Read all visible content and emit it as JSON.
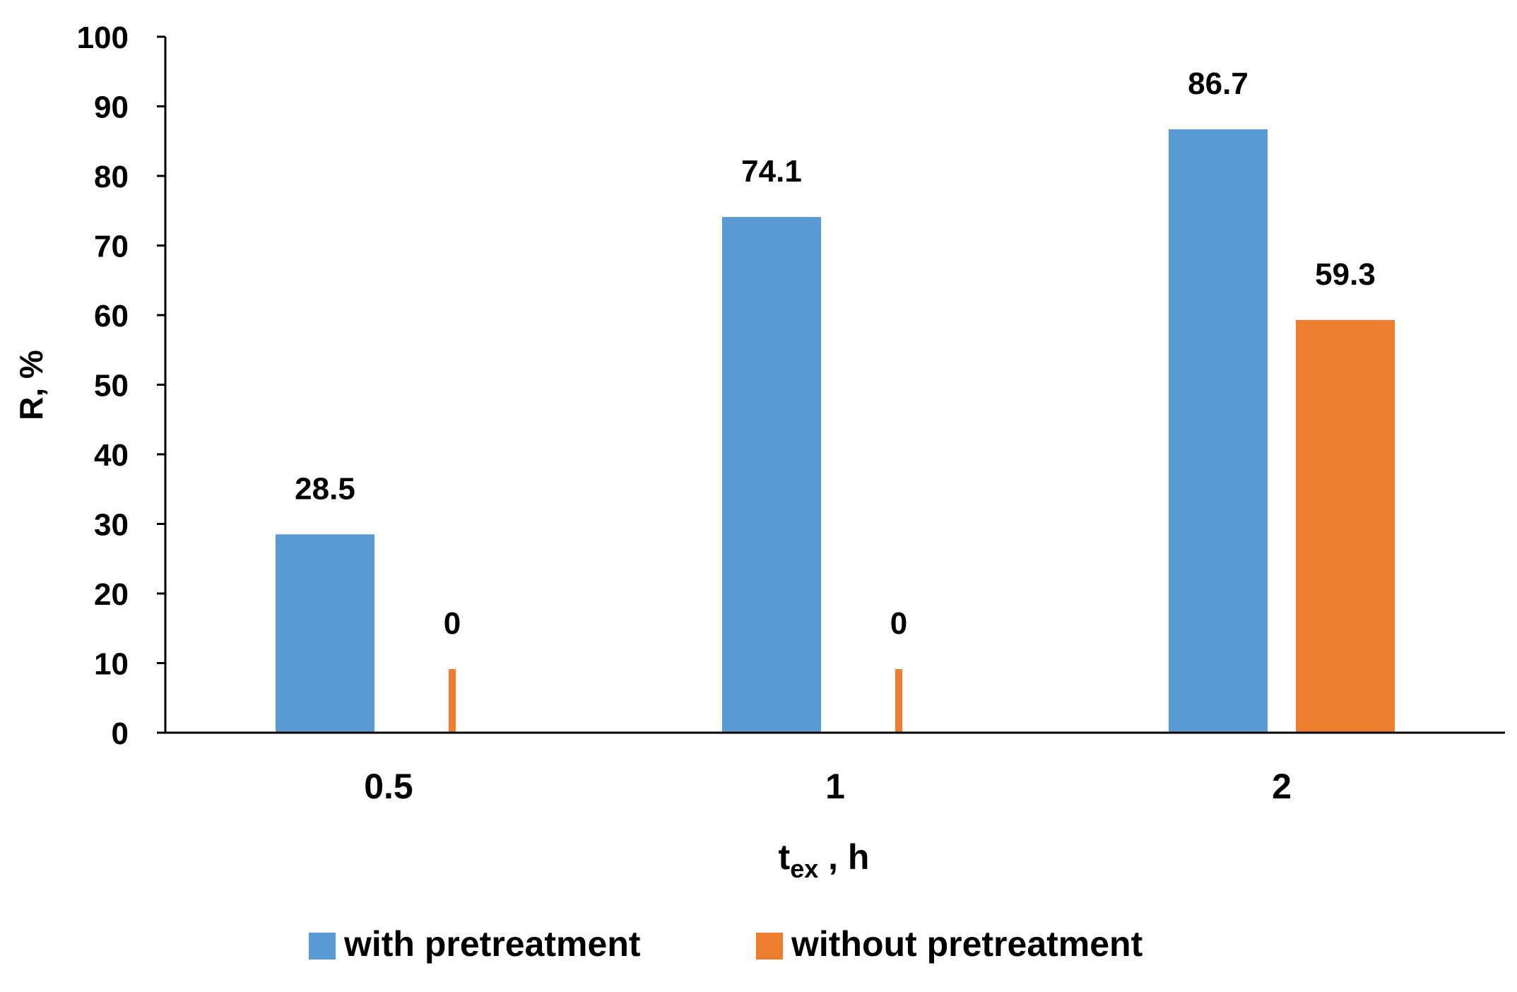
{
  "chart_data": {
    "type": "bar",
    "title": "",
    "categories": [
      "0.5",
      "1",
      "2"
    ],
    "series": [
      {
        "name": "with pretreatment",
        "values": [
          28.5,
          74.1,
          86.7
        ],
        "data_labels": [
          "28.5",
          "74.1",
          "86.7"
        ],
        "color": "#5B9BD5"
      },
      {
        "name": "without pretreatment",
        "values": [
          0,
          0,
          59.3
        ],
        "data_labels": [
          "0",
          "0",
          "59.3"
        ],
        "color": "#ED7D31"
      }
    ],
    "ylabel": "R, %",
    "xlabel_main": "t",
    "xlabel_sub": "ex",
    "xlabel_unit": " , h",
    "ylim": [
      0,
      100
    ],
    "yticks": [
      "0",
      "10",
      "20",
      "30",
      "40",
      "50",
      "60",
      "70",
      "80",
      "90",
      "100"
    ],
    "grid": false,
    "legend_position": "bottom"
  }
}
